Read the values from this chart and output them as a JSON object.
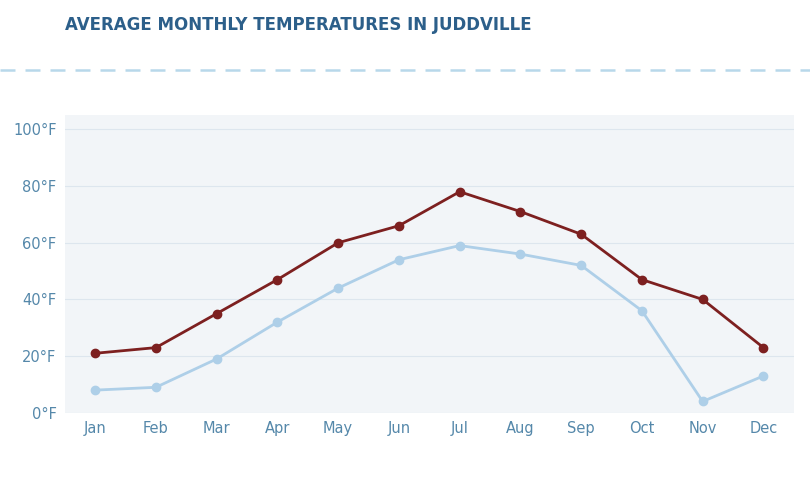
{
  "title": "AVERAGE MONTHLY TEMPERATURES IN JUDDVILLE",
  "months": [
    "Jan",
    "Feb",
    "Mar",
    "Apr",
    "May",
    "Jun",
    "Jul",
    "Aug",
    "Sep",
    "Oct",
    "Nov",
    "Dec"
  ],
  "avg_low": [
    8,
    9,
    19,
    32,
    44,
    54,
    59,
    56,
    52,
    36,
    4,
    13
  ],
  "avg_high": [
    21,
    23,
    35,
    47,
    60,
    66,
    78,
    71,
    63,
    47,
    40,
    23
  ],
  "low_color": "#aecfe8",
  "high_color": "#7d2020",
  "fig_bg_color": "#ffffff",
  "plot_bg_color": "#f2f5f8",
  "title_color": "#2c5f8a",
  "axis_label_color": "#5588aa",
  "grid_color": "#dde6ee",
  "dashed_line_color": "#b8d8ea",
  "legend_text_color": "#888888",
  "ylim": [
    0,
    105
  ],
  "yticks": [
    0,
    20,
    40,
    60,
    80,
    100
  ],
  "ytick_labels": [
    "0°F",
    "20°F",
    "40°F",
    "60°F",
    "80°F",
    "100°F"
  ],
  "marker_size": 6,
  "line_width": 2
}
